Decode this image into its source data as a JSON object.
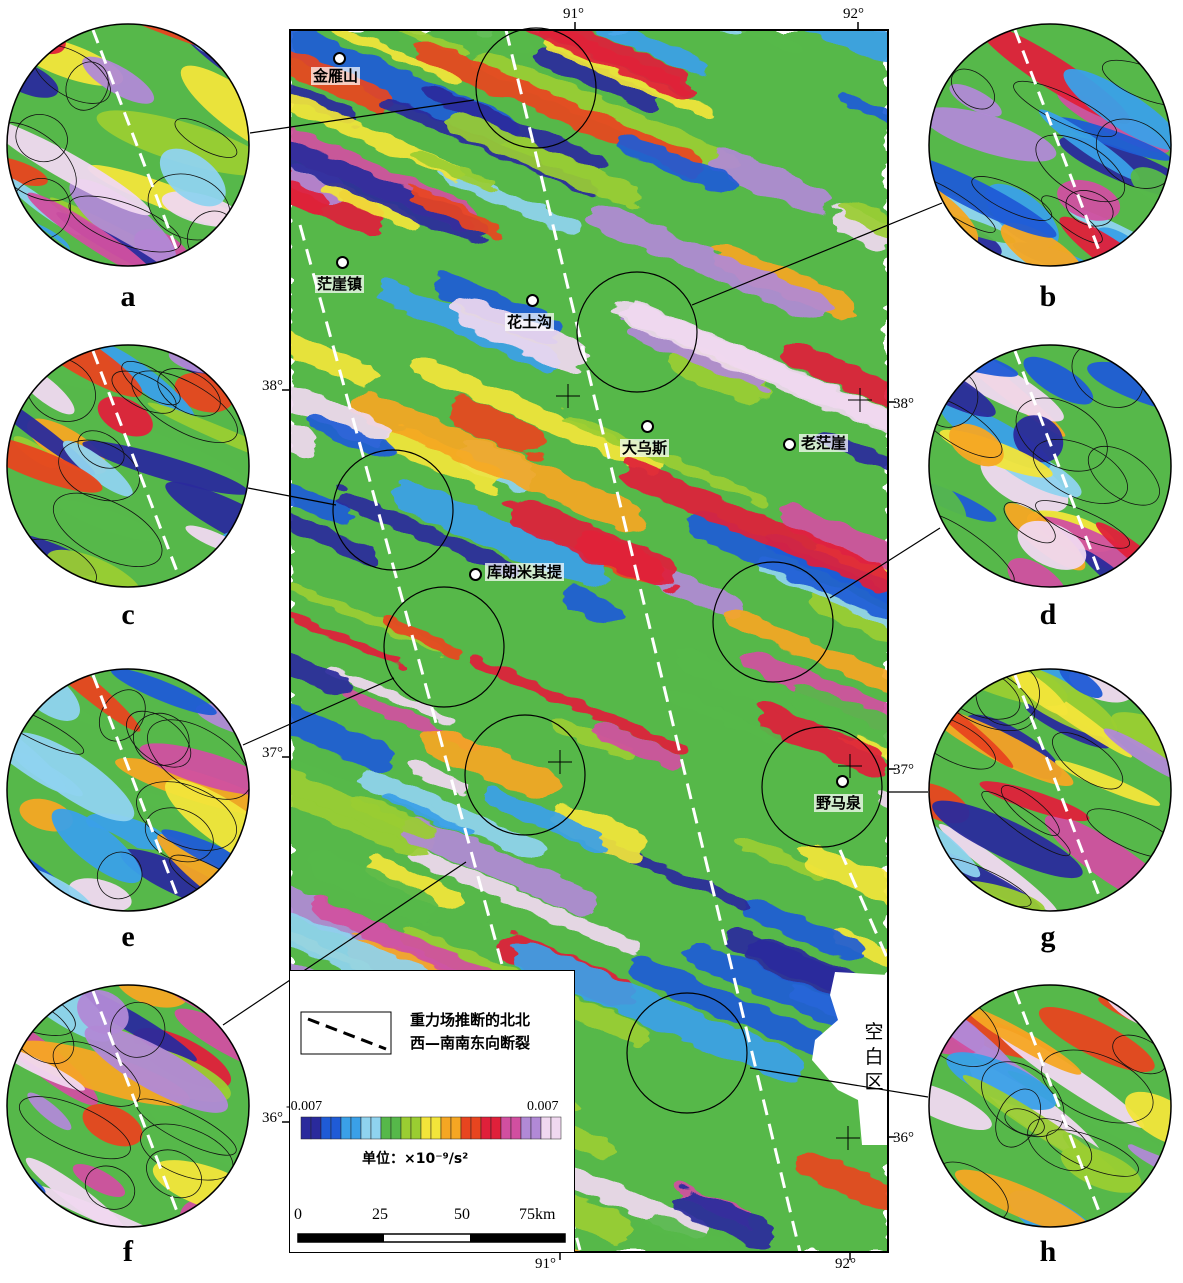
{
  "coordinates": {
    "top": [
      "91°",
      "92°"
    ],
    "bottom": [
      "91°",
      "92°"
    ],
    "left": [
      "38°",
      "37°",
      "36°"
    ],
    "right": [
      "38°",
      "37°",
      "36°"
    ]
  },
  "towns": [
    "金雁山",
    "茫崖镇",
    "花土沟",
    "大乌斯",
    "老茫崖",
    "库朗米其提",
    "野马泉"
  ],
  "blank_area_label": [
    "空",
    "白",
    "区"
  ],
  "panels": [
    "a",
    "b",
    "c",
    "d",
    "e",
    "f",
    "g",
    "h"
  ],
  "legend": {
    "fault_label_line1": "重力场推断的北北",
    "fault_label_line2": "西—南南东向断裂",
    "colorbar_min": "-0.007",
    "colorbar_max": "0.007",
    "unit": "单位：×10⁻⁹/s²",
    "scale_ticks": [
      "0",
      "25",
      "50",
      "75km"
    ]
  },
  "colors": {
    "scale": [
      "#2a2a9c",
      "#1f5bd6",
      "#3aa0e8",
      "#8fd3ef",
      "#56b84a",
      "#9acd32",
      "#f2e53a",
      "#f5a623",
      "#e8451f",
      "#e0203a",
      "#d14fa0",
      "#b189d6",
      "#f0d8f0"
    ]
  }
}
